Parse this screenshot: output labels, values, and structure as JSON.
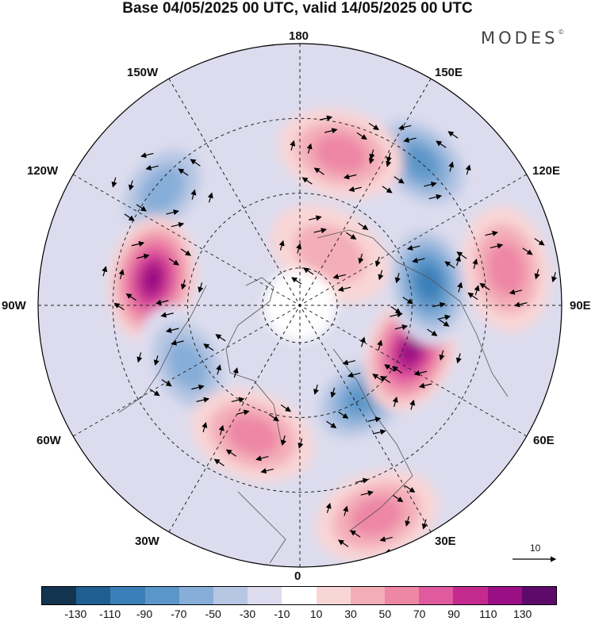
{
  "title": "Base 04/05/2025 00 UTC, valid 14/05/2025 00 UTC",
  "brand": "MODES",
  "brand_mark": "©",
  "longitude_labels": {
    "n180": "180",
    "e150": "150E",
    "e120": "120E",
    "e90": "90E",
    "e60": "60E",
    "e30": "30E",
    "zero": "0",
    "w30": "30W",
    "w60": "60W",
    "w90": "90W",
    "w120": "120W",
    "w150": "150W"
  },
  "vector_scale_label": "10",
  "colorbar": {
    "colors": [
      "#12344f",
      "#1f5f8f",
      "#3a7fb8",
      "#5b96c8",
      "#87aed8",
      "#b6c6e3",
      "#dcdcee",
      "#ffffff",
      "#f9d6d6",
      "#f3aeb8",
      "#ee86a6",
      "#e05a9f",
      "#c42a8e",
      "#9a0f84",
      "#5e0a6b"
    ],
    "ticks": [
      "-130",
      "-110",
      "-90",
      "-70",
      "-50",
      "-30",
      "-10",
      "10",
      "30",
      "50",
      "70",
      "90",
      "110",
      "130"
    ]
  },
  "anomaly_centers": [
    {
      "name": "hawaii-low-north",
      "value": -60,
      "lon": -130,
      "lat": 42
    },
    {
      "name": "canada-high",
      "value": 110,
      "lon": -100,
      "lat": 50
    },
    {
      "name": "atlantic-low",
      "value": -60,
      "lon": -62,
      "lat": 56
    },
    {
      "name": "east-atlantic-high",
      "value": 50,
      "lon": -20,
      "lat": 53
    },
    {
      "name": "russia-low",
      "value": -80,
      "lon": 35,
      "lat": 60
    },
    {
      "name": "siberia-high",
      "value": 120,
      "lon": 68,
      "lat": 58
    },
    {
      "name": "central-asia-low",
      "value": -90,
      "lon": 100,
      "lat": 55
    },
    {
      "name": "east-asia-high",
      "value": 50,
      "lon": 100,
      "lat": 34
    },
    {
      "name": "pacific-low",
      "value": -80,
      "lon": 140,
      "lat": 40
    },
    {
      "name": "bering-high",
      "value": 60,
      "lon": 165,
      "lat": 48
    },
    {
      "name": "arctic-east-high",
      "value": 40,
      "lon": 150,
      "lat": 74
    },
    {
      "name": "mediterranean-high",
      "value": 60,
      "lon": 20,
      "lat": 30
    }
  ]
}
